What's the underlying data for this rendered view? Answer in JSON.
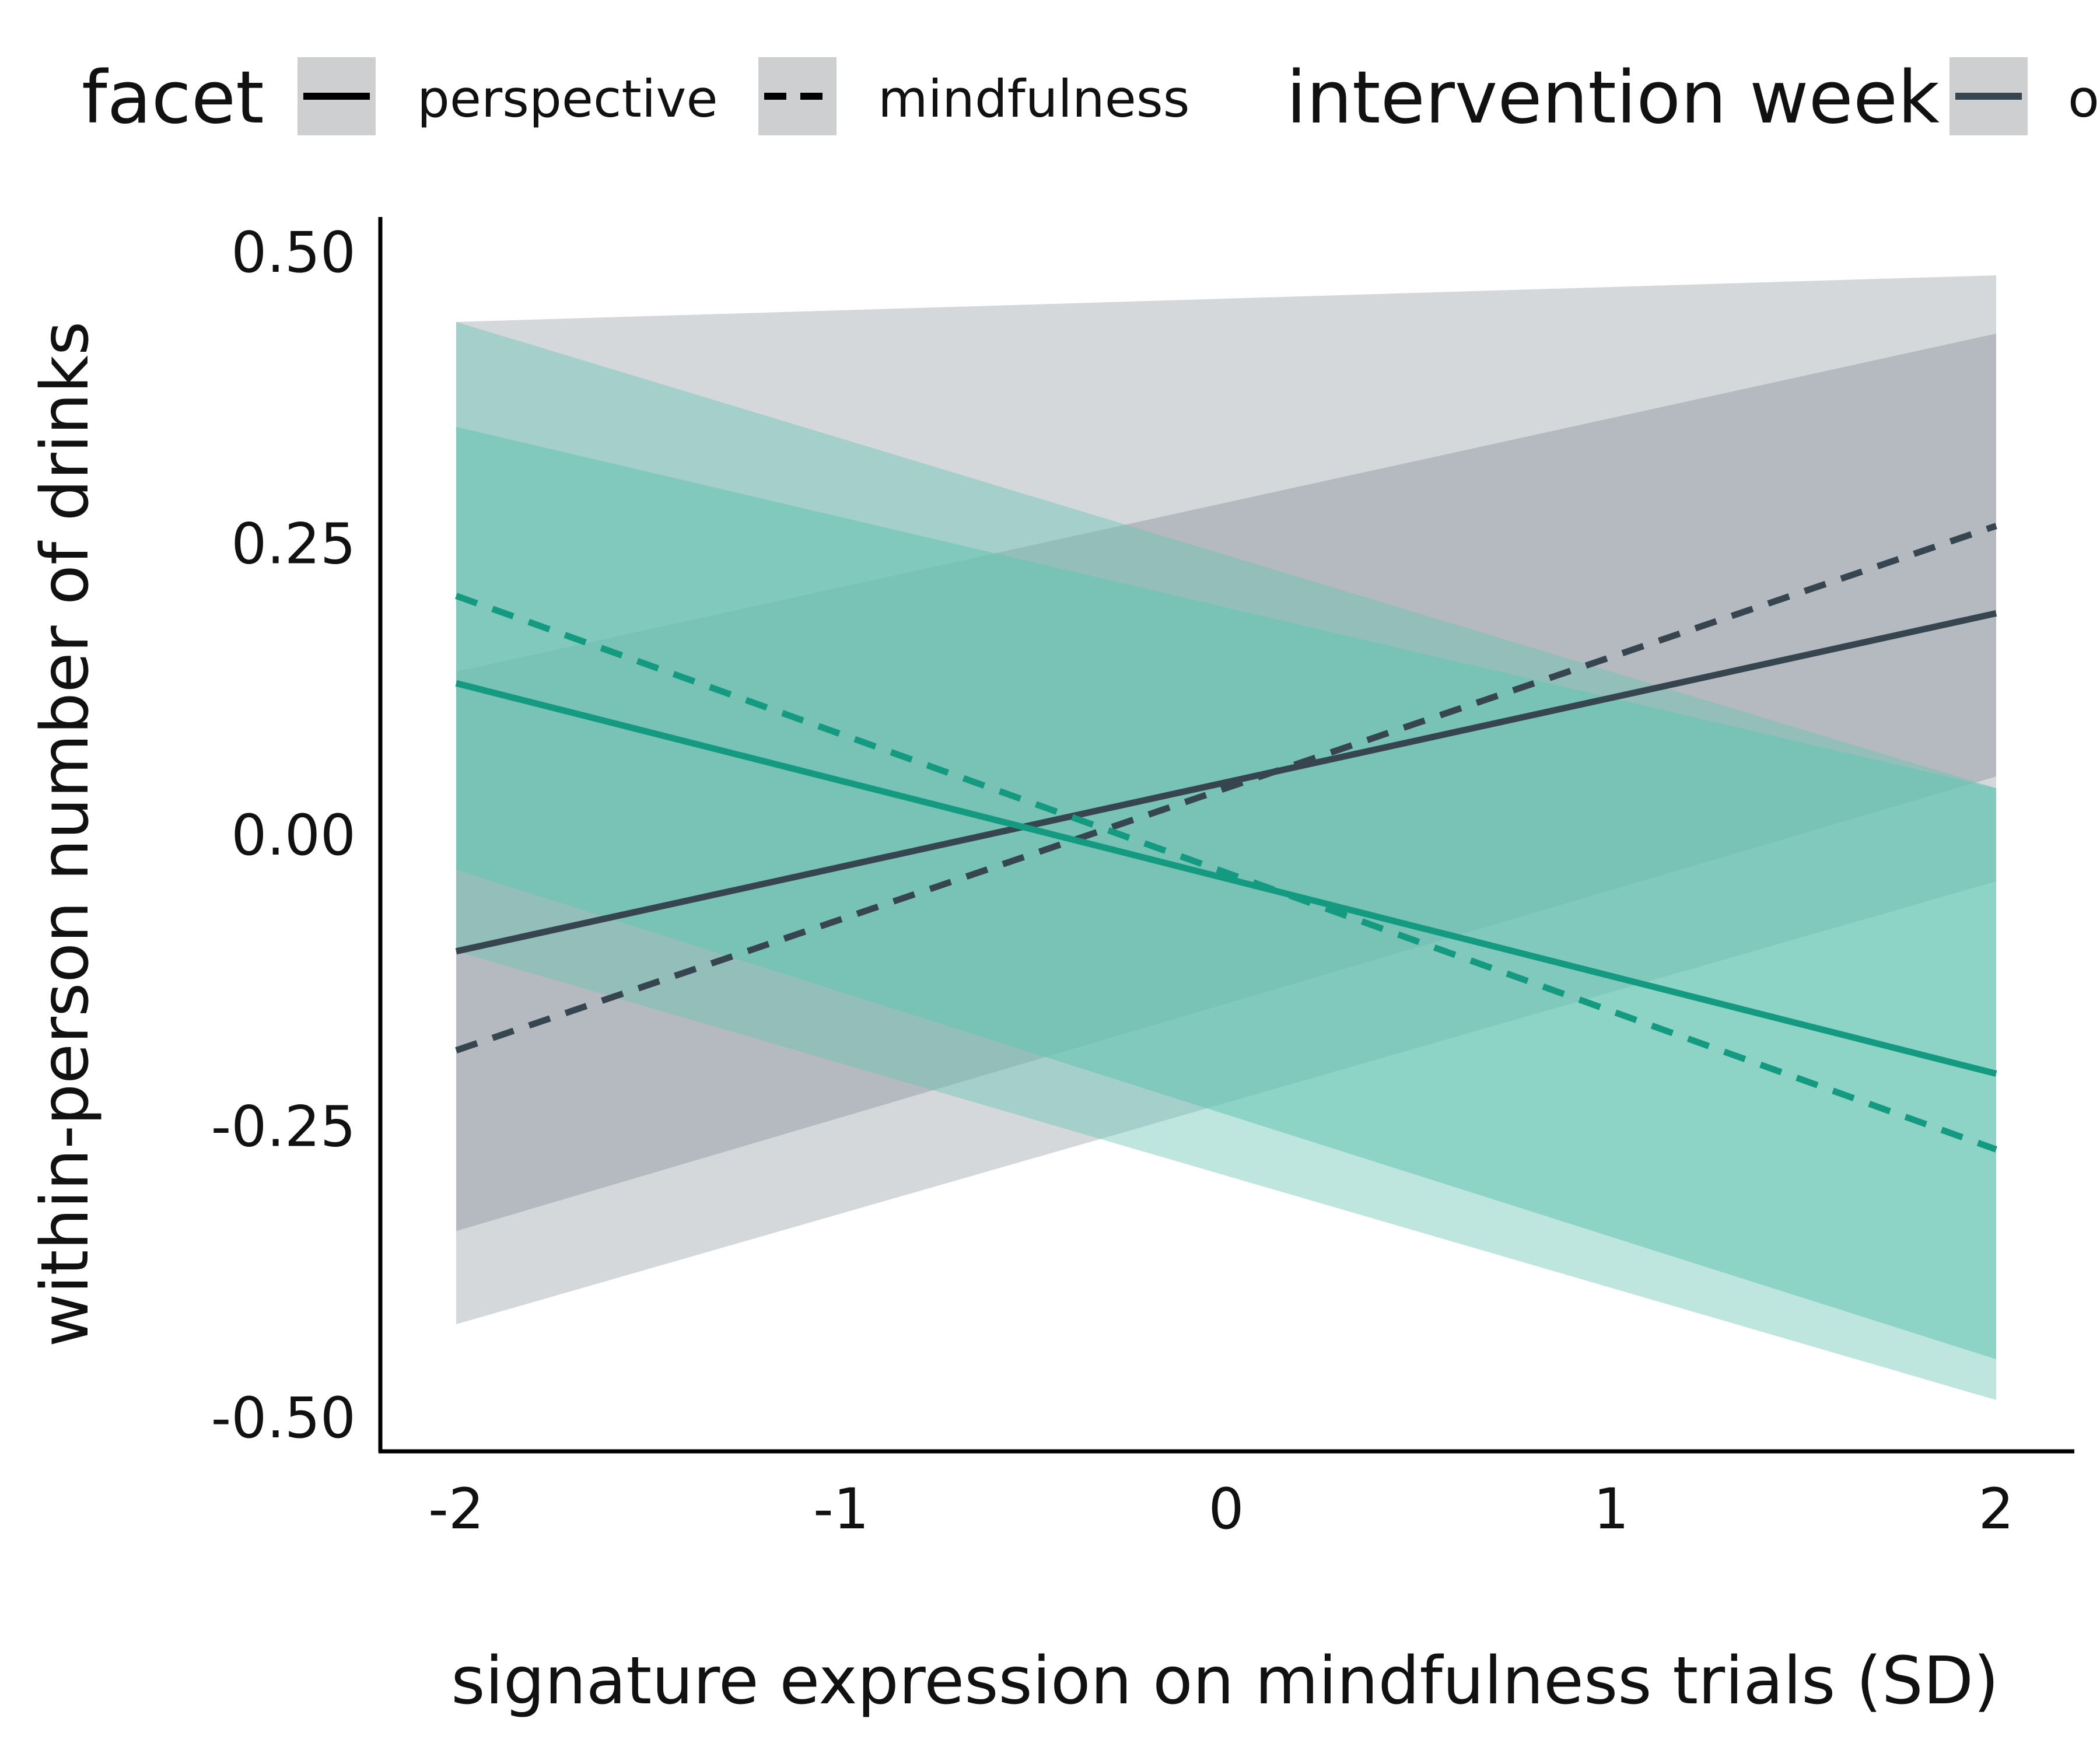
{
  "legend": {
    "facet_title": "facet",
    "facet_items": [
      {
        "label": "perspective",
        "linestyle": "solid"
      },
      {
        "label": "mindfulness",
        "linestyle": "dashed"
      }
    ],
    "week_title": "intervention week",
    "week_items": [
      {
        "label": "o",
        "color": "#36454f"
      }
    ]
  },
  "colors": {
    "slate": "#36454f",
    "teal": "#149a80",
    "slate_band": "#9ba3a9",
    "teal_band": "#64c4b2",
    "legend_key_bg": "#cdcfd1"
  },
  "chart_data": {
    "type": "line",
    "xlabel": "signature expression on mindfulness trials (SD)",
    "ylabel": "within-person number of drinks",
    "xlim": [
      -2,
      2
    ],
    "ylim": [
      -0.5,
      0.5
    ],
    "xticks": [
      "-2",
      "-1",
      "0",
      "1",
      "2"
    ],
    "yticks": [
      "0.50",
      "0.25",
      "0.00",
      "-0.25",
      "-0.50"
    ],
    "x": [
      -2,
      2
    ],
    "series": [
      {
        "name": "perspective",
        "group_color": "slate",
        "linestyle": "solid",
        "values": [
          -0.1,
          0.19
        ],
        "ci_inner": {
          "lower": [
            -0.34,
            0.05
          ],
          "upper": [
            0.14,
            0.43
          ]
        },
        "ci_outer": {
          "lower": [
            -0.42,
            -0.04
          ],
          "upper": [
            0.44,
            0.48
          ]
        }
      },
      {
        "name": "mindfulness",
        "group_color": "slate",
        "linestyle": "dashed",
        "values": [
          -0.185,
          0.265
        ],
        "ci_inner": {
          "lower": [
            -0.34,
            0.05
          ],
          "upper": [
            0.14,
            0.43
          ]
        },
        "ci_outer": {
          "lower": [
            -0.42,
            -0.04
          ],
          "upper": [
            0.44,
            0.48
          ]
        }
      },
      {
        "name": "perspective",
        "group_color": "teal",
        "linestyle": "solid",
        "values": [
          0.13,
          -0.205
        ],
        "ci_inner": {
          "lower": [
            -0.03,
            -0.45
          ],
          "upper": [
            0.35,
            0.04
          ]
        },
        "ci_outer": {
          "lower": [
            -0.1,
            -0.485
          ],
          "upper": [
            0.44,
            0.04
          ]
        }
      },
      {
        "name": "mindfulness",
        "group_color": "teal",
        "linestyle": "dashed",
        "values": [
          0.205,
          -0.27
        ],
        "ci_inner": {
          "lower": [
            -0.03,
            -0.45
          ],
          "upper": [
            0.35,
            0.04
          ]
        },
        "ci_outer": {
          "lower": [
            -0.1,
            -0.485
          ],
          "upper": [
            0.44,
            0.04
          ]
        }
      }
    ],
    "grid": false,
    "legend_position": "top"
  }
}
